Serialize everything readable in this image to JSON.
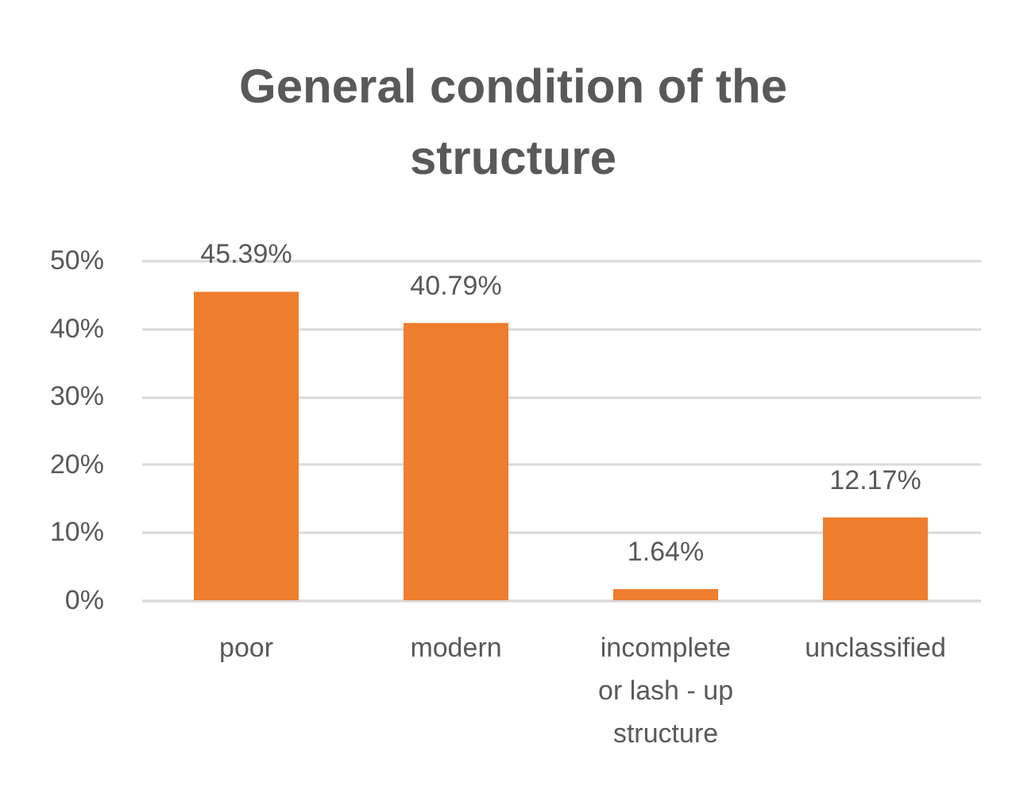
{
  "chart_data": {
    "type": "bar",
    "title": "General condition of the structure",
    "categories": [
      "poor",
      "modern",
      "incomplete or lash - up structure",
      "unclassified"
    ],
    "values": [
      45.39,
      40.79,
      1.64,
      12.17
    ],
    "color": "#ef7e2f",
    "value_labels": [
      "45.39%",
      "40.79%",
      "1.64%",
      "12.17%"
    ],
    "ylim": [
      0,
      50
    ],
    "yticks": [
      {
        "value": 0,
        "label": "0%"
      },
      {
        "value": 10,
        "label": "10%"
      },
      {
        "value": 20,
        "label": "20%"
      },
      {
        "value": 30,
        "label": "30%"
      },
      {
        "value": 40,
        "label": "40%"
      },
      {
        "value": 50,
        "label": "50%"
      }
    ],
    "grid": "y"
  }
}
